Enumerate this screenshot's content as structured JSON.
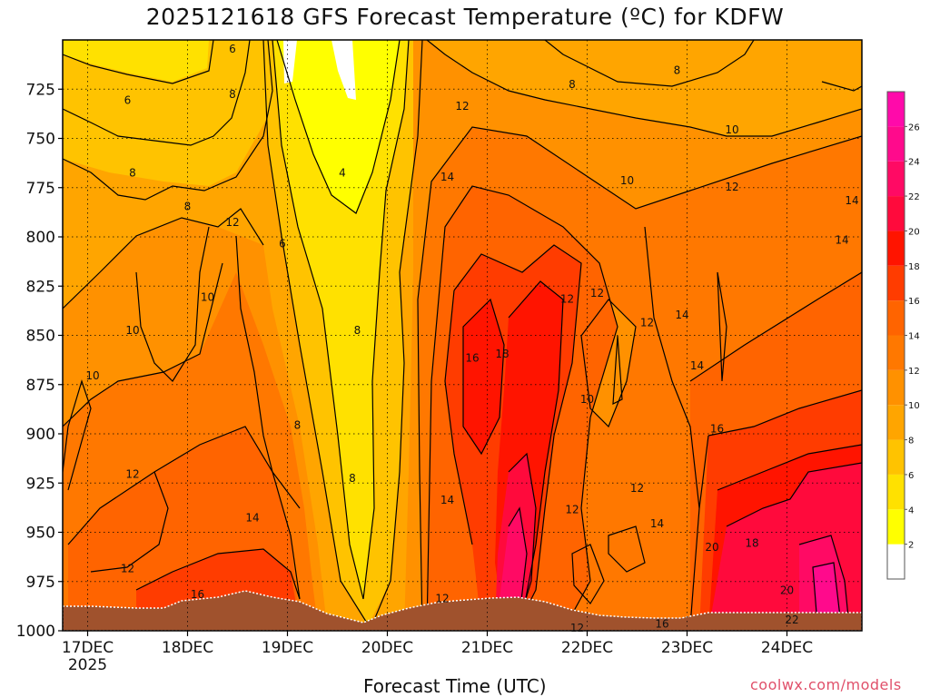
{
  "chart_data": {
    "type": "heatmap",
    "title": "2025121618 GFS Forecast Temperature (ºC) for KDFW",
    "xlabel": "Forecast Time (UTC)",
    "ylabel": "",
    "credit": "coolwx.com/models",
    "x_ticks": [
      {
        "label": "17DEC",
        "sublabel": "2025",
        "day": 17.0
      },
      {
        "label": "18DEC",
        "sublabel": "",
        "day": 18.0
      },
      {
        "label": "19DEC",
        "sublabel": "",
        "day": 19.0
      },
      {
        "label": "20DEC",
        "sublabel": "",
        "day": 20.0
      },
      {
        "label": "21DEC",
        "sublabel": "",
        "day": 21.0
      },
      {
        "label": "22DEC",
        "sublabel": "",
        "day": 22.0
      },
      {
        "label": "23DEC",
        "sublabel": "",
        "day": 23.0
      },
      {
        "label": "24DEC",
        "sublabel": "",
        "day": 24.0
      }
    ],
    "xlim": [
      16.75,
      24.75
    ],
    "y_ticks": [
      {
        "label": "725",
        "p": 725
      },
      {
        "label": "750",
        "p": 750
      },
      {
        "label": "775",
        "p": 775
      },
      {
        "label": "800",
        "p": 800
      },
      {
        "label": "825",
        "p": 825
      },
      {
        "label": "850",
        "p": 850
      },
      {
        "label": "875",
        "p": 875
      },
      {
        "label": "900",
        "p": 900
      },
      {
        "label": "925",
        "p": 925
      },
      {
        "label": "950",
        "p": 950
      },
      {
        "label": "975",
        "p": 975
      },
      {
        "label": "1000",
        "p": 1000
      }
    ],
    "ylim": [
      700,
      1000
    ],
    "colorbar": {
      "labels": [
        "2",
        "4",
        "6",
        "8",
        "10",
        "12",
        "14",
        "16",
        "18",
        "20",
        "22",
        "24",
        "26"
      ],
      "bins": [
        {
          "lo": 0,
          "hi": 2,
          "color": "#ffffff"
        },
        {
          "lo": 2,
          "hi": 4,
          "color": "#ffff00"
        },
        {
          "lo": 4,
          "hi": 6,
          "color": "#ffe100"
        },
        {
          "lo": 6,
          "hi": 8,
          "color": "#ffc300"
        },
        {
          "lo": 8,
          "hi": 10,
          "color": "#ffa500"
        },
        {
          "lo": 10,
          "hi": 12,
          "color": "#ff9100"
        },
        {
          "lo": 12,
          "hi": 14,
          "color": "#ff7800"
        },
        {
          "lo": 14,
          "hi": 16,
          "color": "#ff6400"
        },
        {
          "lo": 16,
          "hi": 18,
          "color": "#ff3c00"
        },
        {
          "lo": 18,
          "hi": 20,
          "color": "#ff1400"
        },
        {
          "lo": 20,
          "hi": 22,
          "color": "#ff0a3c"
        },
        {
          "lo": 22,
          "hi": 24,
          "color": "#ff0a64"
        },
        {
          "lo": 24,
          "hi": 26,
          "color": "#ff0a8c"
        },
        {
          "lo": 26,
          "hi": 28,
          "color": "#ff0aaa"
        }
      ]
    },
    "contour_labels": [
      {
        "text": "6",
        "day": 18.45,
        "p": 705
      },
      {
        "text": "8",
        "day": 18.45,
        "p": 728
      },
      {
        "text": "6",
        "day": 17.4,
        "p": 731
      },
      {
        "text": "8",
        "day": 17.45,
        "p": 768
      },
      {
        "text": "8",
        "day": 18.0,
        "p": 785
      },
      {
        "text": "12",
        "day": 18.45,
        "p": 793
      },
      {
        "text": "6",
        "day": 18.95,
        "p": 804
      },
      {
        "text": "4",
        "day": 19.55,
        "p": 768
      },
      {
        "text": "10",
        "day": 18.2,
        "p": 831
      },
      {
        "text": "10",
        "day": 17.45,
        "p": 848
      },
      {
        "text": "10",
        "day": 17.05,
        "p": 871
      },
      {
        "text": "8",
        "day": 19.7,
        "p": 848
      },
      {
        "text": "8",
        "day": 19.1,
        "p": 896
      },
      {
        "text": "8",
        "day": 19.65,
        "p": 923
      },
      {
        "text": "12",
        "day": 17.45,
        "p": 921
      },
      {
        "text": "14",
        "day": 18.65,
        "p": 943
      },
      {
        "text": "12",
        "day": 17.4,
        "p": 969
      },
      {
        "text": "16",
        "day": 18.1,
        "p": 982
      },
      {
        "text": "12",
        "day": 20.75,
        "p": 734
      },
      {
        "text": "14",
        "day": 20.6,
        "p": 770
      },
      {
        "text": "16",
        "day": 20.85,
        "p": 862
      },
      {
        "text": "18",
        "day": 21.15,
        "p": 860
      },
      {
        "text": "14",
        "day": 20.6,
        "p": 934
      },
      {
        "text": "12",
        "day": 20.55,
        "p": 984
      },
      {
        "text": "12",
        "day": 21.8,
        "p": 832
      },
      {
        "text": "12",
        "day": 22.1,
        "p": 829
      },
      {
        "text": "10",
        "day": 22.0,
        "p": 883
      },
      {
        "text": "12",
        "day": 21.85,
        "p": 939
      },
      {
        "text": "12",
        "day": 21.9,
        "p": 999
      },
      {
        "text": "8",
        "day": 21.85,
        "p": 723
      },
      {
        "text": "8",
        "day": 22.9,
        "p": 716
      },
      {
        "text": "10",
        "day": 23.45,
        "p": 746
      },
      {
        "text": "10",
        "day": 22.4,
        "p": 772
      },
      {
        "text": "12",
        "day": 23.45,
        "p": 775
      },
      {
        "text": "14",
        "day": 24.65,
        "p": 782
      },
      {
        "text": "14",
        "day": 24.55,
        "p": 802
      },
      {
        "text": "12",
        "day": 22.6,
        "p": 844
      },
      {
        "text": "14",
        "day": 22.95,
        "p": 840
      },
      {
        "text": "14",
        "day": 23.1,
        "p": 866
      },
      {
        "text": "16",
        "day": 23.3,
        "p": 898
      },
      {
        "text": "12",
        "day": 22.5,
        "p": 928
      },
      {
        "text": "14",
        "day": 22.7,
        "p": 946
      },
      {
        "text": "20",
        "day": 23.25,
        "p": 958
      },
      {
        "text": "18",
        "day": 23.65,
        "p": 956
      },
      {
        "text": "20",
        "day": 24.0,
        "p": 980
      },
      {
        "text": "22",
        "day": 24.05,
        "p": 995
      },
      {
        "text": "16",
        "day": 22.75,
        "p": 997
      }
    ]
  }
}
